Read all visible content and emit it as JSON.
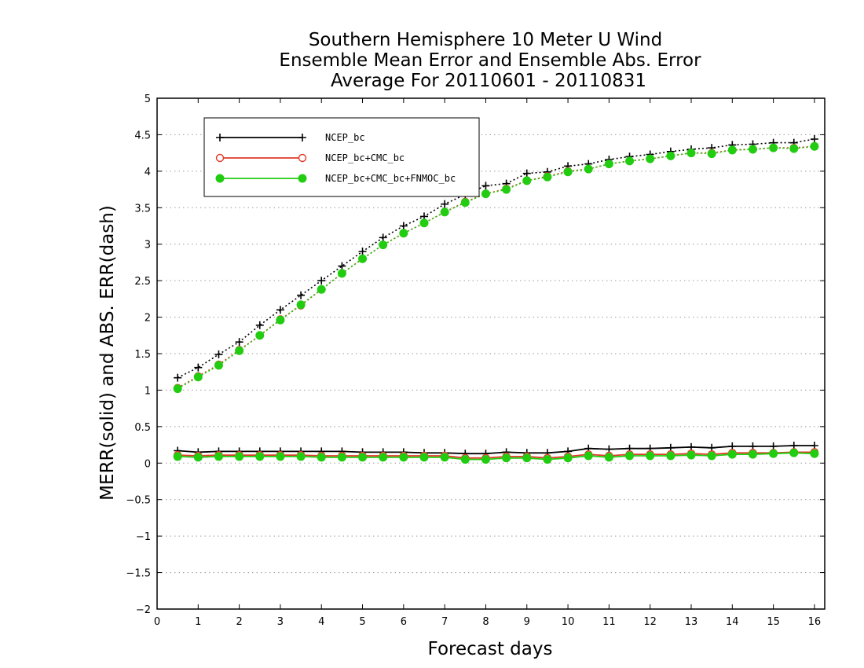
{
  "chart_data": {
    "type": "line",
    "title_lines": [
      "Southern Hemisphere 10 Meter U Wind",
      "Ensemble Mean Error and Ensemble Abs. Error",
      "Average For 20110601 - 20110831"
    ],
    "xlabel": "Forecast days",
    "ylabel": "MERR(solid) and ABS. ERR(dash)",
    "xlim": [
      0,
      16.25
    ],
    "ylim": [
      -2,
      5
    ],
    "xticks": [
      0,
      1,
      2,
      3,
      4,
      5,
      6,
      7,
      8,
      9,
      10,
      11,
      12,
      13,
      14,
      15,
      16
    ],
    "yticks": [
      -2,
      -1.5,
      -1,
      -0.5,
      0,
      0.5,
      1,
      1.5,
      2,
      2.5,
      3,
      3.5,
      4,
      4.5,
      5
    ],
    "ytick_labels": [
      "−2",
      "−1.5",
      "−1",
      "−0.5",
      "0",
      "0.5",
      "1",
      "1.5",
      "2",
      "2.5",
      "3",
      "3.5",
      "4",
      "4.5",
      "5"
    ],
    "grid": "horizontal dotted",
    "legend_position": "top-left",
    "x": [
      0.5,
      1,
      1.5,
      2,
      2.5,
      3,
      3.5,
      4,
      4.5,
      5,
      5.5,
      6,
      6.5,
      7,
      7.5,
      8,
      8.5,
      9,
      9.5,
      10,
      10.5,
      11,
      11.5,
      12,
      12.5,
      13,
      13.5,
      14,
      14.5,
      15,
      15.5,
      16
    ],
    "series": [
      {
        "name": "NCEP_bc",
        "color": "#000000",
        "marker": "plus",
        "abs_err": [
          1.17,
          1.31,
          1.49,
          1.66,
          1.89,
          2.1,
          2.3,
          2.5,
          2.7,
          2.9,
          3.09,
          3.25,
          3.38,
          3.55,
          3.68,
          3.8,
          3.83,
          3.97,
          3.99,
          4.07,
          4.1,
          4.16,
          4.2,
          4.23,
          4.27,
          4.3,
          4.32,
          4.36,
          4.37,
          4.39,
          4.39,
          4.44
        ],
        "mean_err": [
          0.17,
          0.15,
          0.16,
          0.16,
          0.16,
          0.16,
          0.16,
          0.16,
          0.16,
          0.15,
          0.15,
          0.15,
          0.14,
          0.14,
          0.13,
          0.13,
          0.15,
          0.14,
          0.14,
          0.16,
          0.2,
          0.19,
          0.2,
          0.2,
          0.21,
          0.22,
          0.21,
          0.23,
          0.23,
          0.23,
          0.24,
          0.24
        ]
      },
      {
        "name": "NCEP_bc+CMC_bc",
        "color": "#e03a2a",
        "marker": "open-circle",
        "abs_err": [
          1.03,
          1.19,
          1.35,
          1.55,
          1.75,
          1.97,
          2.16,
          2.38,
          2.6,
          2.8,
          2.99,
          3.15,
          3.29,
          3.44,
          3.58,
          3.69,
          3.76,
          3.87,
          3.93,
          4.0,
          4.03,
          4.1,
          4.14,
          4.17,
          4.21,
          4.25,
          4.25,
          4.29,
          4.3,
          4.32,
          4.32,
          4.34
        ],
        "mean_err": [
          0.11,
          0.1,
          0.11,
          0.11,
          0.11,
          0.11,
          0.11,
          0.1,
          0.1,
          0.1,
          0.1,
          0.1,
          0.1,
          0.1,
          0.07,
          0.07,
          0.09,
          0.09,
          0.07,
          0.09,
          0.12,
          0.1,
          0.12,
          0.12,
          0.12,
          0.13,
          0.12,
          0.14,
          0.14,
          0.14,
          0.15,
          0.15
        ]
      },
      {
        "name": "NCEP_bc+CMC_bc+FNMOC_bc",
        "color": "#22cc11",
        "marker": "filled-circle",
        "abs_err": [
          1.02,
          1.18,
          1.34,
          1.54,
          1.75,
          1.96,
          2.17,
          2.38,
          2.6,
          2.8,
          2.99,
          3.15,
          3.29,
          3.44,
          3.57,
          3.69,
          3.75,
          3.87,
          3.92,
          3.99,
          4.03,
          4.1,
          4.14,
          4.17,
          4.21,
          4.25,
          4.24,
          4.29,
          4.3,
          4.32,
          4.31,
          4.34
        ],
        "mean_err": [
          0.09,
          0.08,
          0.09,
          0.09,
          0.09,
          0.09,
          0.09,
          0.08,
          0.08,
          0.08,
          0.08,
          0.08,
          0.08,
          0.08,
          0.05,
          0.05,
          0.07,
          0.07,
          0.05,
          0.07,
          0.1,
          0.08,
          0.1,
          0.1,
          0.1,
          0.11,
          0.1,
          0.12,
          0.12,
          0.13,
          0.14,
          0.13
        ]
      }
    ]
  }
}
